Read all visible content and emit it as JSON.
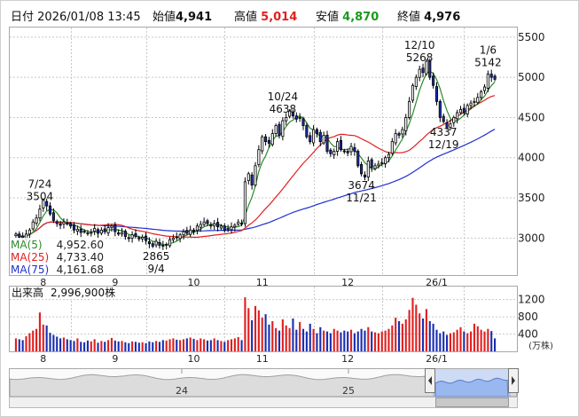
{
  "header": {
    "date_label": "日付",
    "date_value": "2026/01/08 13:45",
    "open_label": "始値",
    "open_value": "4,941",
    "high_label": "高値",
    "high_value": "5,014",
    "low_label": "安値",
    "low_value": "4,870",
    "close_label": "終値",
    "close_value": "4,976",
    "high_color": "#e02020",
    "low_color": "#1a9a1a"
  },
  "chart_data": [
    {
      "type": "candlestick",
      "y_ticks": [
        5500,
        5000,
        4500,
        4000,
        3500,
        3000
      ],
      "ylim": [
        2540,
        5620
      ],
      "x_tick_labels": [
        "8",
        "9",
        "10",
        "11",
        "12",
        "26/1"
      ],
      "colors": {
        "up": "#ffffff",
        "down": "#1a2fb0",
        "ma5": "#2a8a2a",
        "ma25": "#e02020",
        "ma75": "#2030d0"
      },
      "ma_legend": [
        {
          "label": "MA(5)",
          "value": "4,952.60",
          "color": "#2a8a2a"
        },
        {
          "label": "MA(25)",
          "value": "4,733.40",
          "color": "#e02020"
        },
        {
          "label": "MA(75)",
          "value": "4,161.68",
          "color": "#2030d0"
        }
      ],
      "annotations": [
        {
          "date": "7/24",
          "value": "3504",
          "pos": "above"
        },
        {
          "date": "9/4",
          "value": "2865",
          "pos": "below"
        },
        {
          "date": "10/24",
          "value": "4638",
          "pos": "above"
        },
        {
          "date": "11/21",
          "value": "3674",
          "pos": "below"
        },
        {
          "date": "12/10",
          "value": "5268",
          "pos": "above"
        },
        {
          "date": "12/19",
          "value": "4337",
          "pos": "below"
        },
        {
          "date": "1/6",
          "value": "5142",
          "pos": "above"
        }
      ],
      "close": [
        3050,
        3010,
        3000,
        3050,
        3100,
        3200,
        3250,
        3360,
        3470,
        3400,
        3300,
        3220,
        3180,
        3160,
        3200,
        3180,
        3150,
        3100,
        3110,
        3070,
        3080,
        3060,
        3070,
        3120,
        3060,
        3100,
        3080,
        3130,
        3150,
        3080,
        3050,
        3070,
        3020,
        3000,
        3040,
        3020,
        2990,
        3010,
        2970,
        2930,
        2900,
        2960,
        2910,
        2900,
        2920,
        2980,
        3000,
        3010,
        3040,
        3080,
        3060,
        3100,
        3080,
        3150,
        3170,
        3200,
        3180,
        3150,
        3180,
        3140,
        3150,
        3100,
        3120,
        3140,
        3160,
        3200,
        3180,
        3700,
        3800,
        3660,
        3900,
        4100,
        4260,
        4200,
        4180,
        4300,
        4400,
        4280,
        4460,
        4500,
        4580,
        4520,
        4480,
        4500,
        4400,
        4260,
        4200,
        4350,
        4300,
        4200,
        4280,
        4080,
        4050,
        4080,
        4200,
        4100,
        4080,
        4060,
        4140,
        4080,
        3900,
        3800,
        3760,
        3960,
        3880,
        3900,
        3920,
        3940,
        4000,
        4040,
        4200,
        4300,
        4280,
        4350,
        4500,
        4700,
        4900,
        5000,
        5100,
        5060,
        5200,
        5000,
        4900,
        4700,
        4500,
        4450,
        4380,
        4420,
        4500,
        4560,
        4600,
        4560,
        4650,
        4680,
        4700,
        4750,
        4820,
        4880,
        5040,
        5000,
        4976
      ],
      "volume_panel": {
        "title": "出来高",
        "latest_value": "2,996,900株",
        "y_ticks": [
          1200,
          800,
          400
        ],
        "ylim": [
          0,
          1500
        ],
        "unit": "(万株)",
        "x_tick_labels": [
          "8",
          "9",
          "10",
          "11",
          "12",
          "26/1"
        ],
        "values": [
          300,
          280,
          260,
          350,
          420,
          480,
          520,
          900,
          620,
          600,
          430,
          380,
          340,
          300,
          320,
          280,
          260,
          240,
          300,
          220,
          210,
          250,
          230,
          280,
          200,
          240,
          220,
          260,
          310,
          250,
          230,
          240,
          210,
          190,
          230,
          220,
          200,
          210,
          190,
          230,
          210,
          240,
          220,
          260,
          250,
          280,
          300,
          270,
          260,
          280,
          300,
          320,
          290,
          260,
          300,
          280,
          250,
          260,
          300,
          260,
          240,
          220,
          260,
          280,
          300,
          330,
          260,
          1250,
          1000,
          720,
          1050,
          950,
          780,
          860,
          620,
          700,
          540,
          480,
          740,
          600,
          540,
          760,
          500,
          680,
          520,
          460,
          640,
          520,
          420,
          560,
          480,
          460,
          420,
          520,
          480,
          440,
          480,
          460,
          500,
          420,
          460,
          520,
          480,
          560,
          460,
          440,
          420,
          460,
          480,
          520,
          600,
          780,
          700,
          640,
          740,
          960,
          1240,
          1080,
          880,
          760,
          980,
          700,
          640,
          500,
          420,
          460,
          380,
          420,
          440,
          500,
          560,
          460,
          420,
          460,
          640,
          580,
          500,
          460,
          520,
          470,
          300
        ]
      }
    }
  ],
  "overview": {
    "tick_labels": [
      "24",
      "25"
    ]
  }
}
